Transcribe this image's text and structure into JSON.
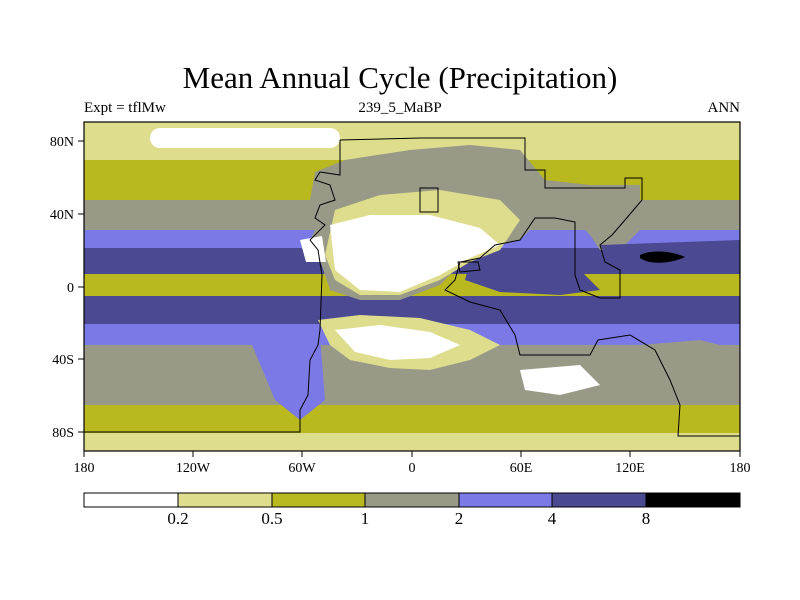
{
  "title": "Mean Annual Cycle (Precipitation)",
  "subtitle_left": "Expt = tflMw",
  "subtitle_center": "239_5_MaBP",
  "subtitle_right": "ANN",
  "colors": {
    "white": "#ffffff",
    "light_olive": "#dedd8e",
    "olive": "#b9b91f",
    "gray": "#999988",
    "lavender": "#7b79e6",
    "slate": "#4a4991",
    "black": "#000000"
  },
  "map": {
    "lon_ticks": [
      "180",
      "120W",
      "60W",
      "0",
      "60E",
      "120E",
      "180"
    ],
    "lat_ticks": [
      "80N",
      "40N",
      "0",
      "40S",
      "80S"
    ]
  },
  "colorbar": {
    "labels": [
      "0.2",
      "0.5",
      "1",
      "2",
      "4",
      "8"
    ]
  }
}
